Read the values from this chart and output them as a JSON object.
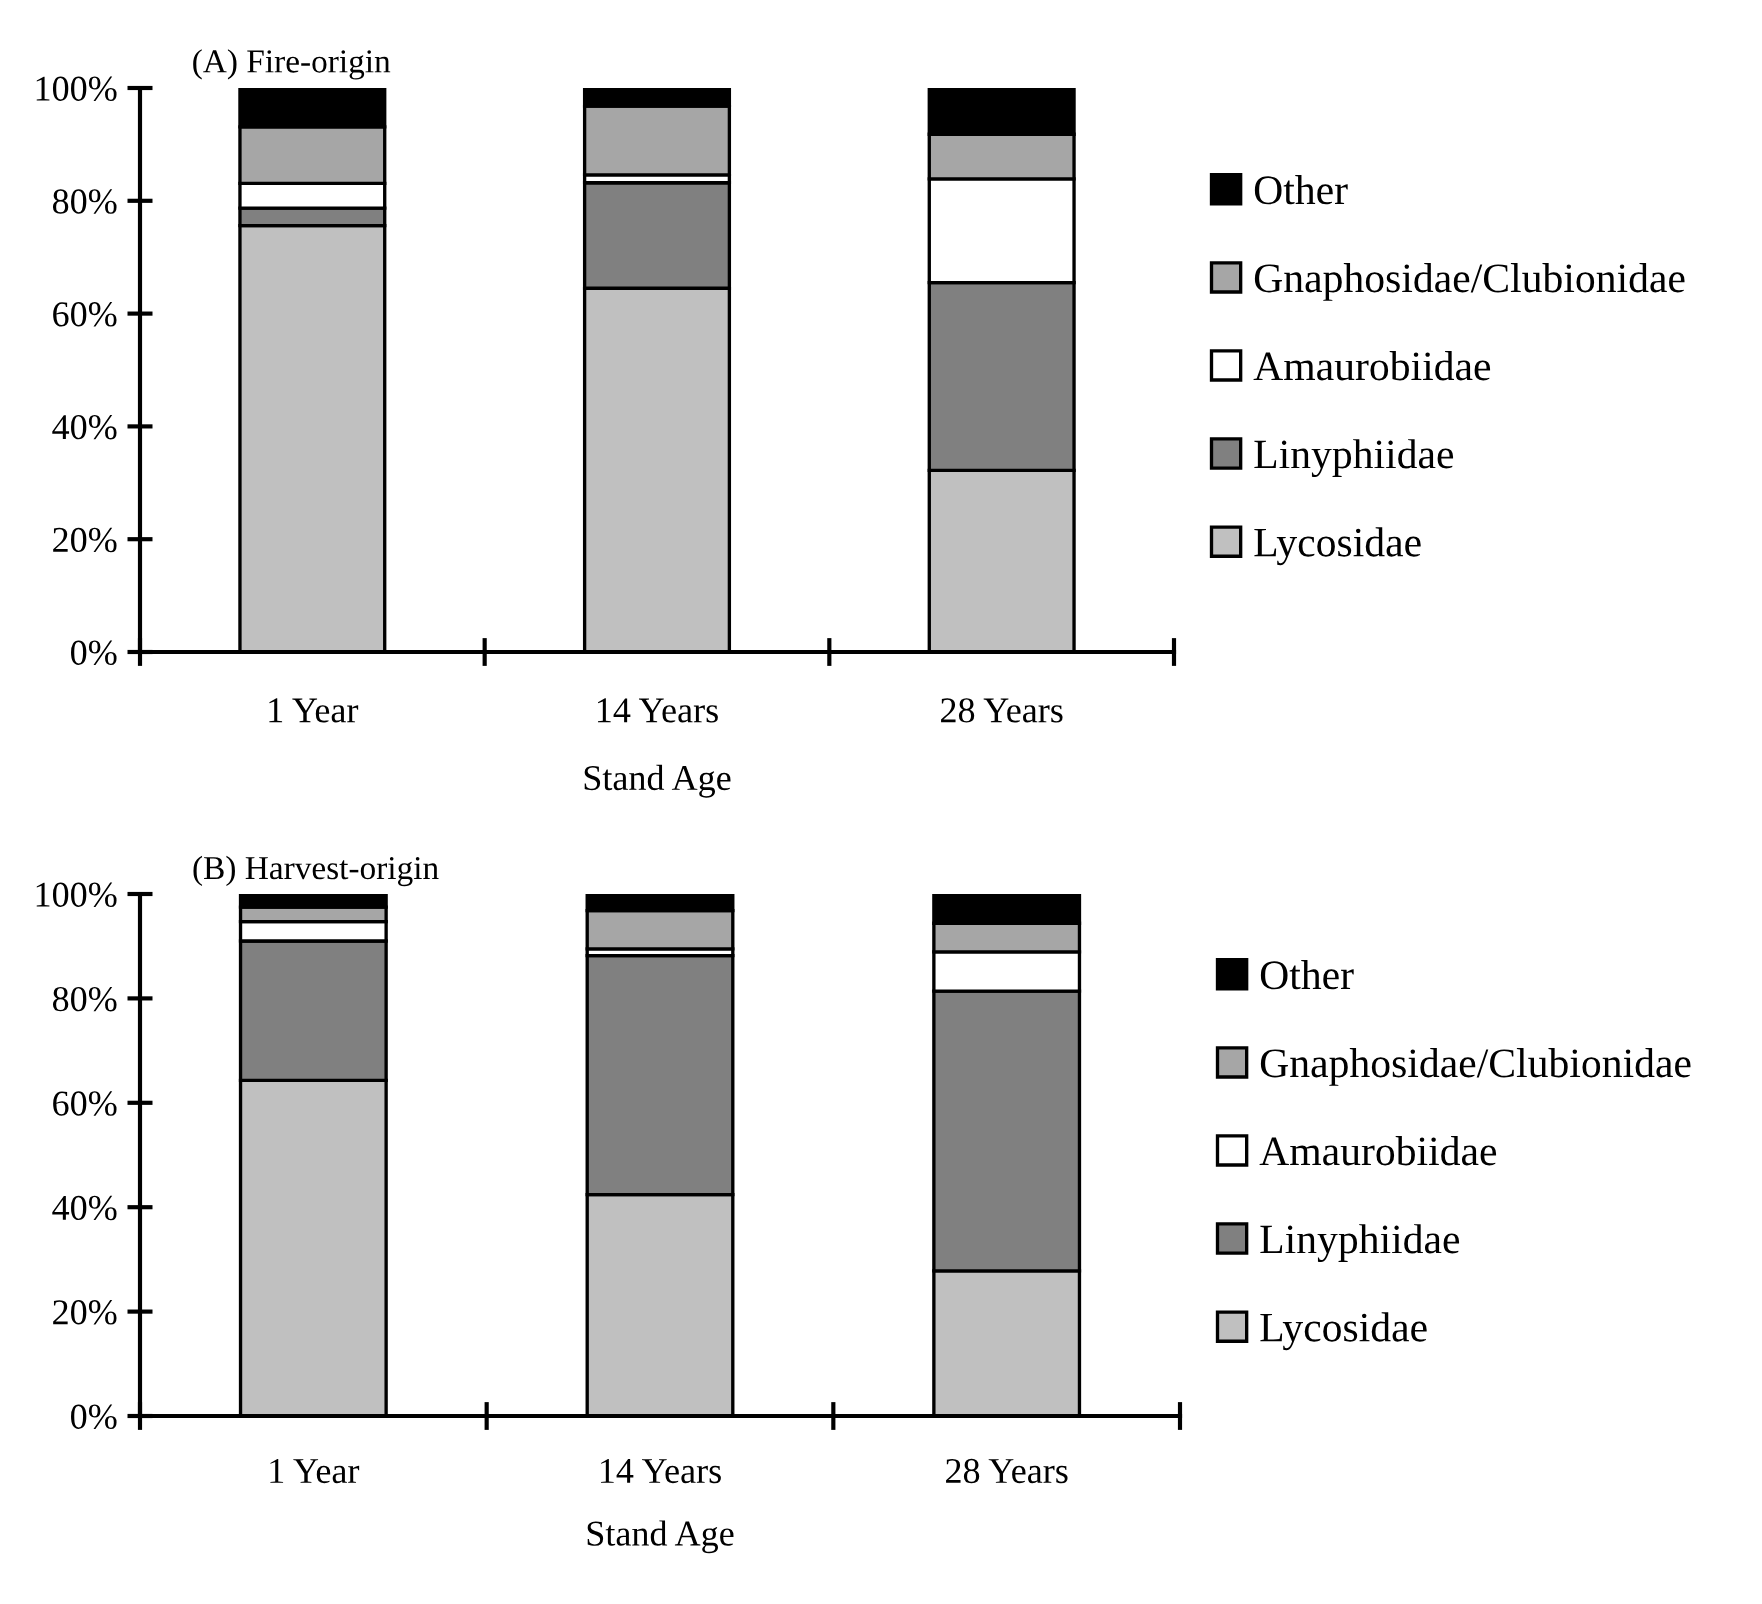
{
  "chart_data": [
    {
      "type": "bar",
      "stacked": true,
      "title": "(A) Fire-origin",
      "xlabel": "Stand Age",
      "categories": [
        "1 Year",
        "14 Years",
        "28 Years"
      ],
      "series": [
        {
          "name": "Lycosidae",
          "color": "#c0c0c0",
          "values": [
            75.6,
            64.5,
            32.2
          ]
        },
        {
          "name": "Linyphiidae",
          "color": "#808080",
          "values": [
            3.1,
            18.7,
            33.3
          ]
        },
        {
          "name": "Amaurobiidae",
          "color": "#ffffff",
          "values": [
            4.4,
            1.4,
            18.4
          ]
        },
        {
          "name": "Gnaphosidae/Clubionidae",
          "color": "#a6a6a6",
          "values": [
            10.0,
            12.2,
            7.9
          ]
        },
        {
          "name": "Other",
          "color": "#000000",
          "values": [
            6.9,
            3.2,
            8.2
          ]
        }
      ],
      "ylim": [
        0,
        100
      ],
      "yticks": [
        {
          "value": 0,
          "label": "0%"
        },
        {
          "value": 20,
          "label": "20%"
        },
        {
          "value": 40,
          "label": "40%"
        },
        {
          "value": 60,
          "label": "60%"
        },
        {
          "value": 80,
          "label": "80%"
        },
        {
          "value": 100,
          "label": "100%"
        }
      ],
      "grid": false,
      "legend": "right"
    },
    {
      "type": "bar",
      "stacked": true,
      "title": "(B) Harvest-origin",
      "xlabel": "Stand Age",
      "categories": [
        "1 Year",
        "14 Years",
        "28 Years"
      ],
      "series": [
        {
          "name": "Lycosidae",
          "color": "#c0c0c0",
          "values": [
            64.3,
            42.4,
            27.8
          ]
        },
        {
          "name": "Linyphiidae",
          "color": "#808080",
          "values": [
            26.7,
            45.8,
            53.6
          ]
        },
        {
          "name": "Amaurobiidae",
          "color": "#ffffff",
          "values": [
            3.7,
            1.3,
            7.5
          ]
        },
        {
          "name": "Gnaphosidae/Clubionidae",
          "color": "#a6a6a6",
          "values": [
            2.8,
            7.3,
            5.5
          ]
        },
        {
          "name": "Other",
          "color": "#000000",
          "values": [
            2.5,
            3.2,
            5.6
          ]
        }
      ],
      "ylim": [
        0,
        100
      ],
      "yticks": [
        {
          "value": 0,
          "label": "0%"
        },
        {
          "value": 20,
          "label": "20%"
        },
        {
          "value": 40,
          "label": "40%"
        },
        {
          "value": 60,
          "label": "60%"
        },
        {
          "value": 80,
          "label": "80%"
        },
        {
          "value": 100,
          "label": "100%"
        }
      ],
      "grid": false,
      "legend": "right"
    }
  ]
}
